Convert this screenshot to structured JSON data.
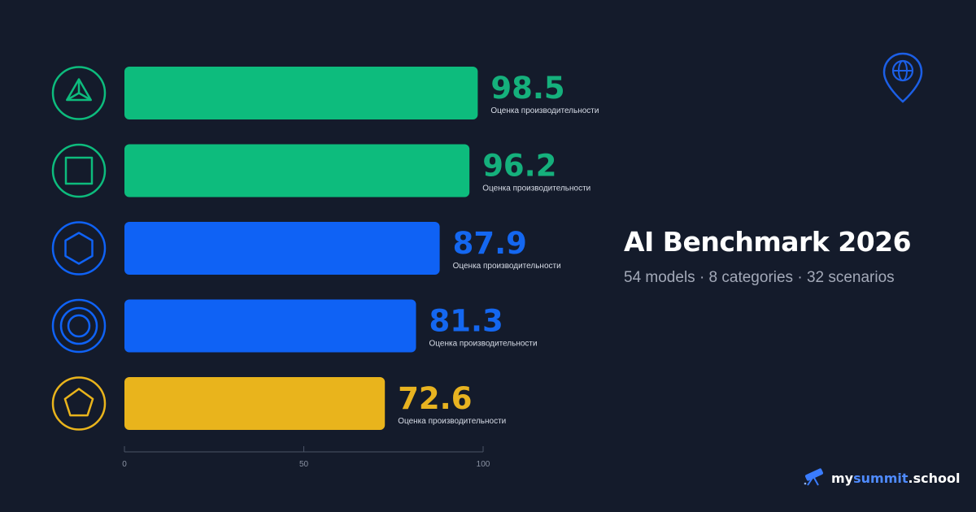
{
  "title": "AI Benchmark 2026",
  "subtitle": "54 models · 8 categories · 32 scenarios",
  "logo": {
    "prefix": "my",
    "accent": "summit",
    "suffix": ".school"
  },
  "pin_icon": "globe-pin-icon",
  "colors": {
    "background": "#141b2b",
    "green": "#0dbc7d",
    "blue": "#0f62f5",
    "gold": "#e9b41c",
    "value_green": "#15b07c",
    "value_blue": "#1467f0",
    "value_gold": "#e8b320"
  },
  "chart_data": {
    "type": "bar",
    "orientation": "horizontal",
    "xlim": [
      0,
      100
    ],
    "ticks": [
      "0",
      "50",
      "100"
    ],
    "bars": [
      {
        "value": 98.5,
        "label": "98.5",
        "caption": "Оценка производительности",
        "icon": "triangle-icon",
        "color": "#0dbc7d",
        "text_color": "#15b07c"
      },
      {
        "value": 96.2,
        "label": "96.2",
        "caption": "Оценка производительности",
        "icon": "square-icon",
        "color": "#0dbc7d",
        "text_color": "#15b07c"
      },
      {
        "value": 87.9,
        "label": "87.9",
        "caption": "Оценка производительности",
        "icon": "hexagon-icon",
        "color": "#0f62f5",
        "text_color": "#1467f0"
      },
      {
        "value": 81.3,
        "label": "81.3",
        "caption": "Оценка производительности",
        "icon": "concentric-circles-icon",
        "color": "#0f62f5",
        "text_color": "#1467f0"
      },
      {
        "value": 72.6,
        "label": "72.6",
        "caption": "Оценка производительности",
        "icon": "pentagon-icon",
        "color": "#e9b41c",
        "text_color": "#e8b320"
      }
    ]
  }
}
